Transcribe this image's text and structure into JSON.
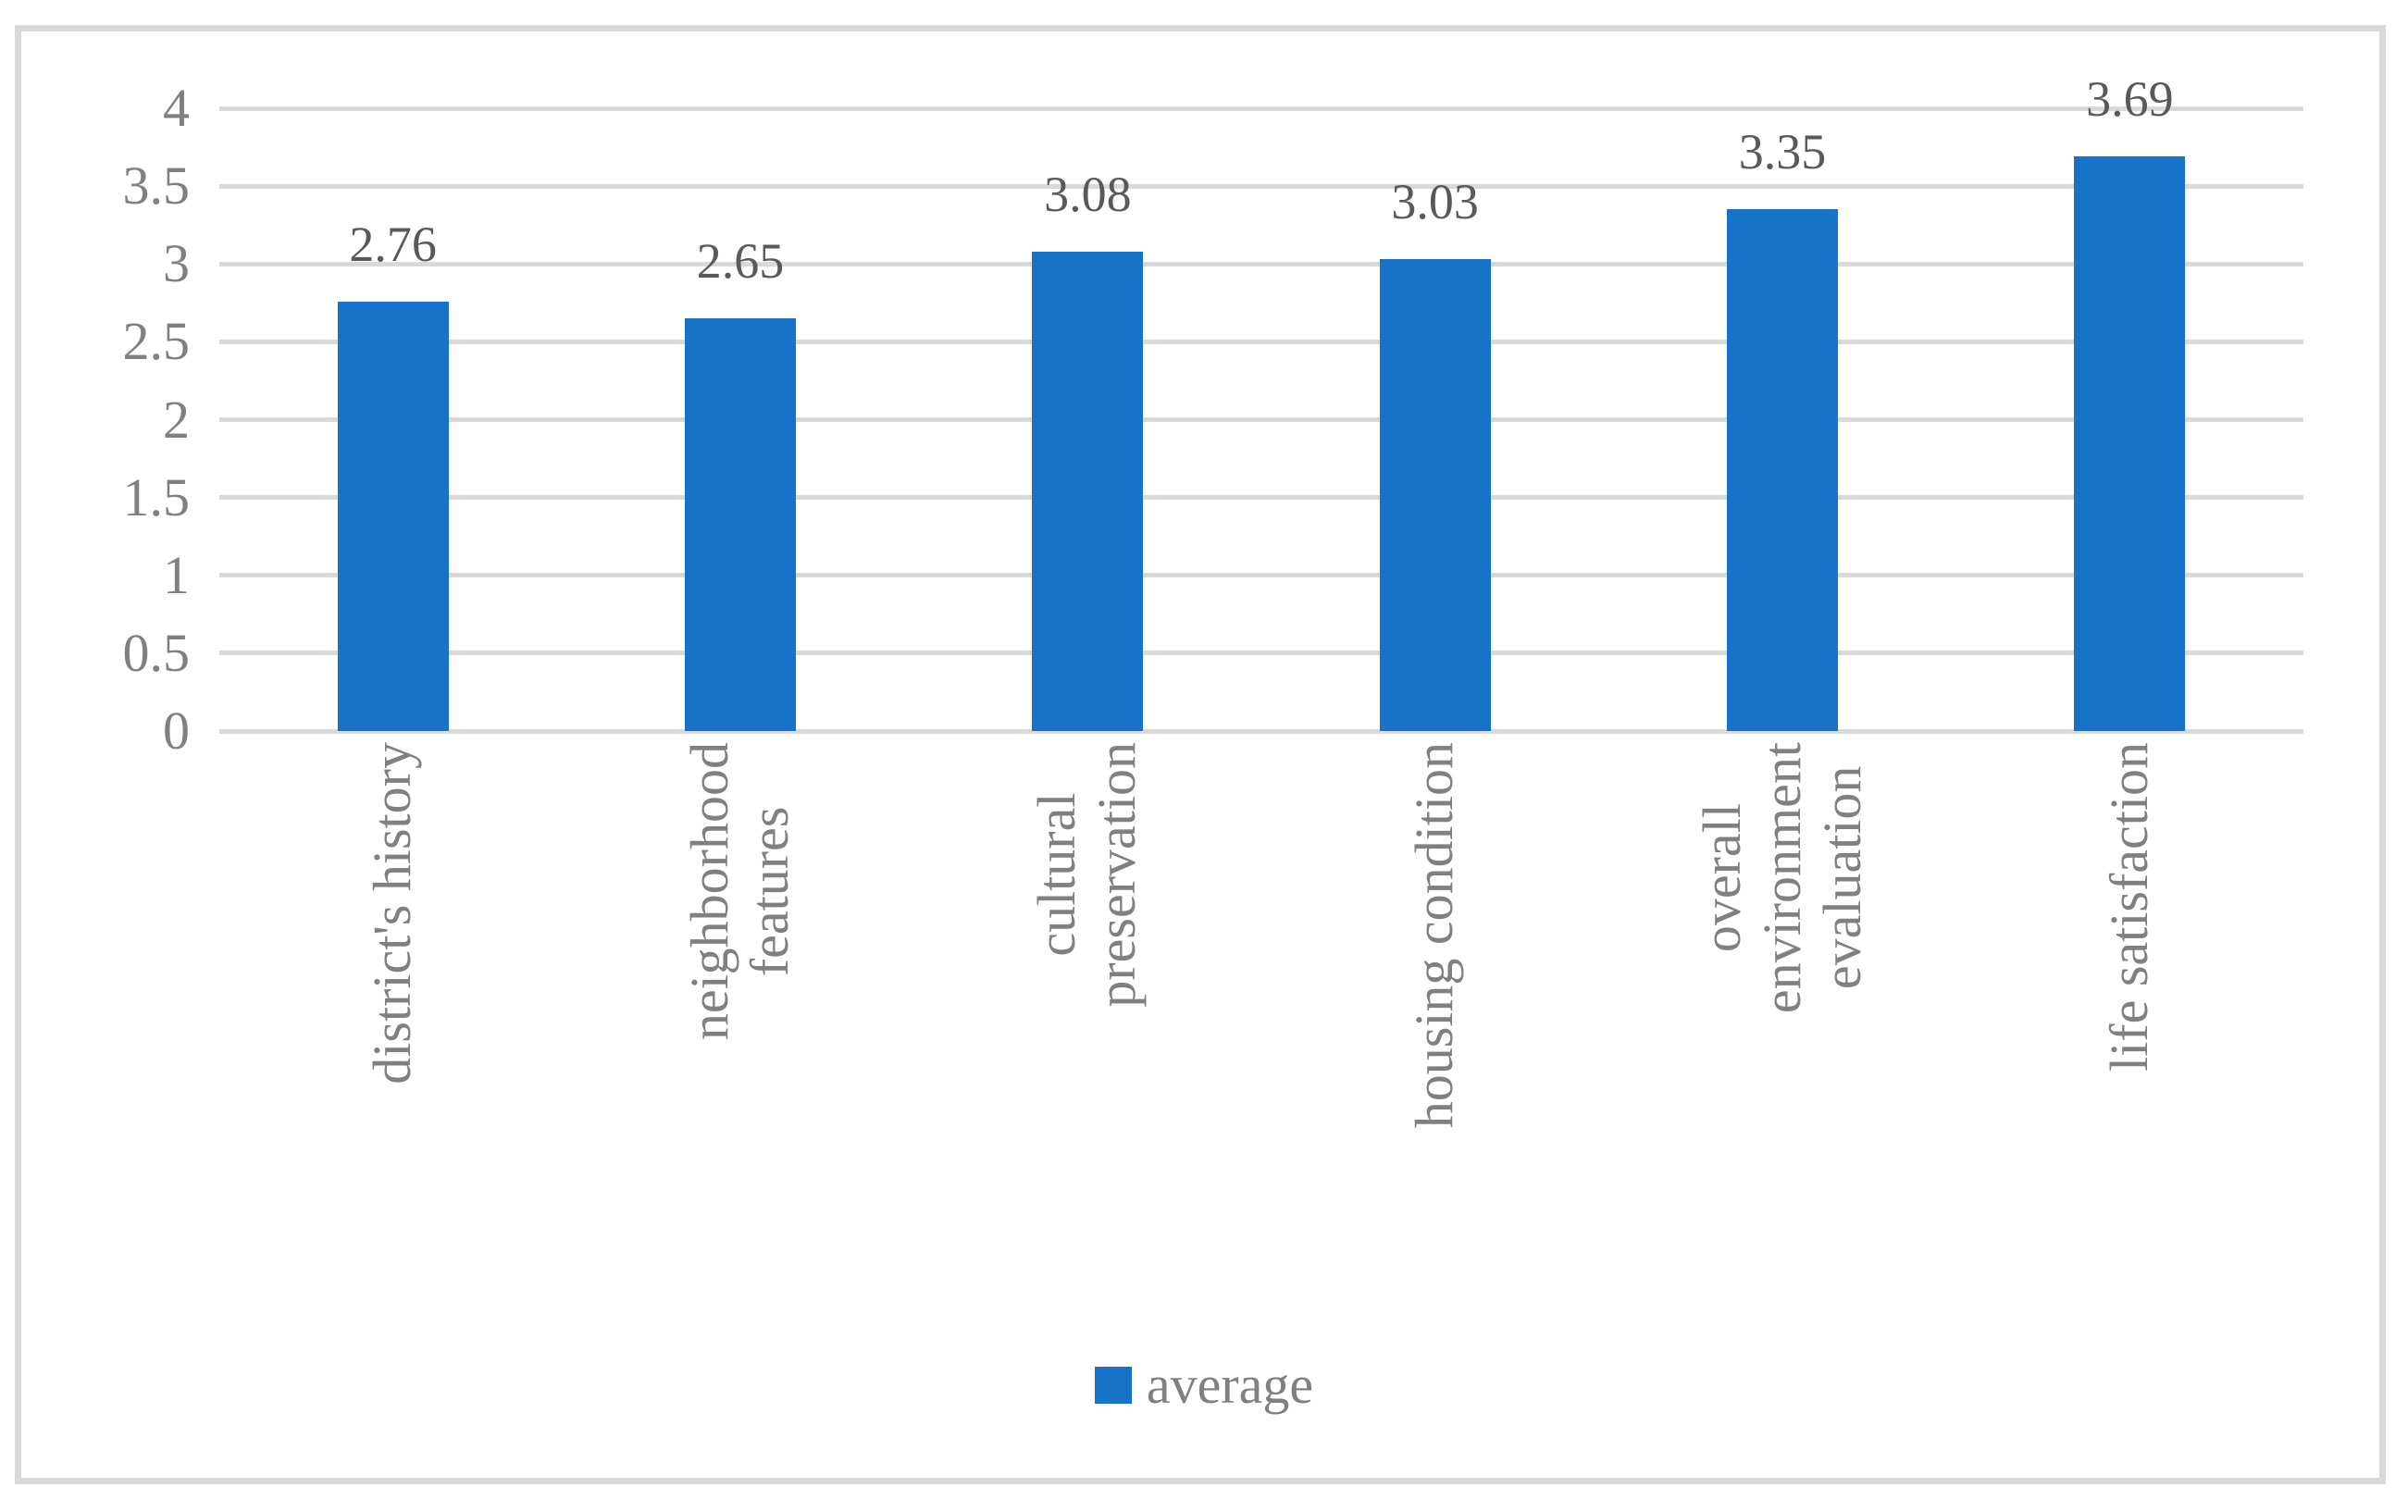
{
  "chart_data": {
    "type": "bar",
    "title": "",
    "xlabel": "",
    "ylabel": "",
    "categories": [
      "district's history",
      "neighborhood features",
      "cultural preservation",
      "housing condition",
      "overall environment evaluation",
      "life satisfaction"
    ],
    "category_lines": [
      [
        "district's history"
      ],
      [
        "neighborhood",
        "features"
      ],
      [
        "cultural",
        "preservation"
      ],
      [
        "housing condition"
      ],
      [
        "overall",
        "environment",
        "evaluation"
      ],
      [
        "life satisfaction"
      ]
    ],
    "series": [
      {
        "name": "average",
        "values": [
          2.76,
          2.65,
          3.08,
          3.03,
          3.35,
          3.69
        ]
      }
    ],
    "data_labels": [
      "2.76",
      "2.65",
      "3.08",
      "3.03",
      "3.35",
      "3.69"
    ],
    "ylim": [
      0,
      4
    ],
    "y_ticks": [
      0,
      0.5,
      1,
      1.5,
      2,
      2.5,
      3,
      3.5,
      4
    ],
    "y_tick_labels": [
      "0",
      "0.5",
      "1",
      "1.5",
      "2",
      "2.5",
      "3",
      "3.5",
      "4"
    ],
    "grid": true,
    "legend_entries": [
      "average"
    ],
    "legend_position": "bottom",
    "colors": {
      "bar": "#1773C7",
      "gridline": "#D9D9D9",
      "frame_border": "#D9D9D9",
      "axis_text": "#808080",
      "data_label_text": "#595959",
      "legend_text": "#808080",
      "background": "#FFFFFF"
    }
  }
}
